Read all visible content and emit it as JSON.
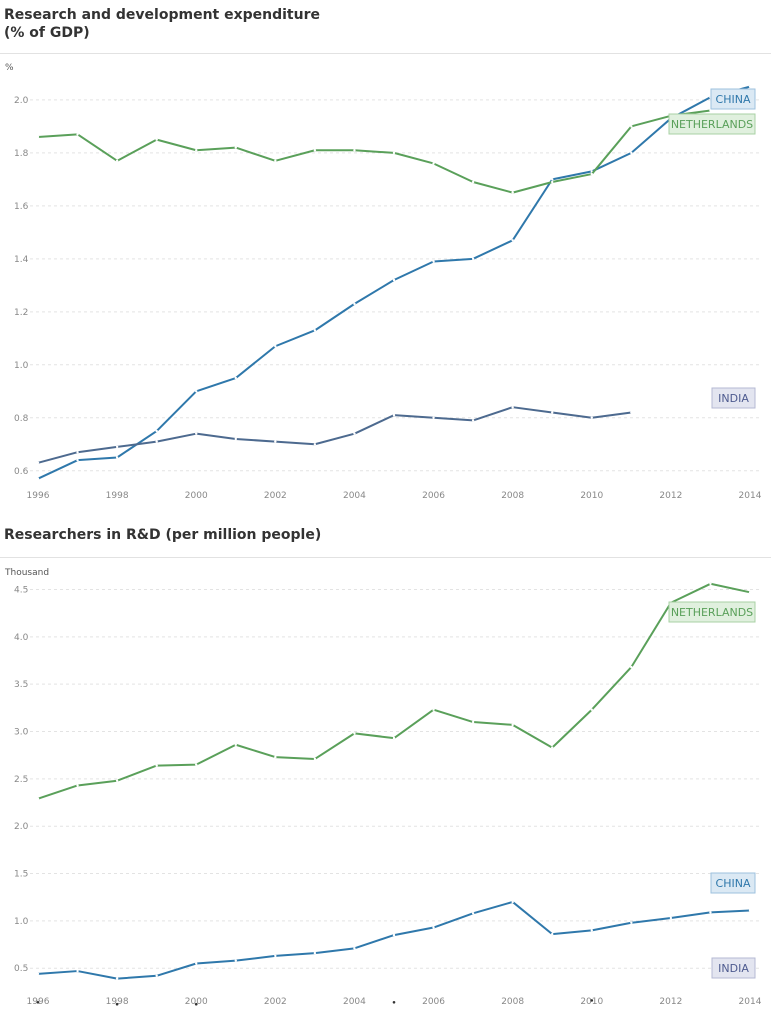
{
  "charts": [
    {
      "title": "Research and development expenditure (% of GDP)",
      "unit": "%",
      "chart_data": {
        "type": "line",
        "title": "Research and development expenditure (% of GDP)",
        "ylabel": "%",
        "xlim": [
          1996,
          2014
        ],
        "ylim": [
          0.55,
          2.06
        ],
        "x_ticks": [
          "1996",
          "1998",
          "2000",
          "2002",
          "2004",
          "2006",
          "2008",
          "2010",
          "2012",
          "2014"
        ],
        "y_ticks": [
          "0.6",
          "0.8",
          "1.0",
          "1.2",
          "1.4",
          "1.6",
          "1.8",
          "2.0"
        ],
        "grid": true,
        "series": [
          {
            "name": "CHINA",
            "color": "#2f78ab",
            "x": [
              1996,
              1997,
              1998,
              1999,
              2000,
              2001,
              2002,
              2003,
              2004,
              2005,
              2006,
              2007,
              2008,
              2009,
              2010,
              2011,
              2012,
              2013,
              2014
            ],
            "values": [
              0.57,
              0.64,
              0.65,
              0.75,
              0.9,
              0.95,
              1.07,
              1.13,
              1.23,
              1.32,
              1.39,
              1.4,
              1.47,
              1.7,
              1.73,
              1.8,
              1.93,
              2.01,
              2.05
            ]
          },
          {
            "name": "NETHERLANDS",
            "color": "#5aa05a",
            "x": [
              1996,
              1997,
              1998,
              1999,
              2000,
              2001,
              2002,
              2003,
              2004,
              2005,
              2006,
              2007,
              2008,
              2009,
              2010,
              2011,
              2012,
              2013
            ],
            "values": [
              1.86,
              1.87,
              1.77,
              1.85,
              1.81,
              1.82,
              1.77,
              1.81,
              1.81,
              1.8,
              1.76,
              1.69,
              1.65,
              1.69,
              1.72,
              1.9,
              1.94,
              1.96
            ]
          },
          {
            "name": "INDIA",
            "color": "#4d6a8f",
            "x": [
              1996,
              1997,
              1998,
              1999,
              2000,
              2001,
              2002,
              2003,
              2004,
              2005,
              2006,
              2007,
              2008,
              2009,
              2010,
              2011
            ],
            "values": [
              0.63,
              0.67,
              0.69,
              0.71,
              0.74,
              0.72,
              0.71,
              0.7,
              0.74,
              0.81,
              0.8,
              0.79,
              0.84,
              0.82,
              0.8,
              0.82
            ]
          }
        ]
      }
    },
    {
      "title": "Researchers in R&D (per million people)",
      "unit": "Thousand",
      "chart_data": {
        "type": "line",
        "title": "Researchers in R&D (per million people)",
        "ylabel": "Thousand",
        "xlim": [
          1996,
          2014
        ],
        "ylim": [
          0.27,
          4.6
        ],
        "x_ticks": [
          "1996",
          "1998",
          "2000",
          "2002",
          "2004",
          "2006",
          "2008",
          "2010",
          "2012",
          "2014"
        ],
        "y_ticks": [
          "0.5",
          "1.0",
          "1.5",
          "2.0",
          "2.5",
          "3.0",
          "3.5",
          "4.0",
          "4.5"
        ],
        "grid": true,
        "series": [
          {
            "name": "NETHERLANDS",
            "color": "#5aa05a",
            "x": [
              1996,
              1997,
              1998,
              1999,
              2000,
              2001,
              2002,
              2003,
              2004,
              2005,
              2006,
              2007,
              2008,
              2009,
              2010,
              2011,
              2012,
              2013,
              2014
            ],
            "values": [
              2.29,
              2.43,
              2.48,
              2.64,
              2.65,
              2.86,
              2.73,
              2.71,
              2.98,
              2.93,
              3.23,
              3.1,
              3.07,
              2.83,
              3.23,
              3.68,
              4.36,
              4.56,
              4.47
            ]
          },
          {
            "name": "CHINA",
            "color": "#2f78ab",
            "x": [
              1996,
              1997,
              1998,
              1999,
              2000,
              2001,
              2002,
              2003,
              2004,
              2005,
              2006,
              2007,
              2008,
              2009,
              2010,
              2011,
              2012,
              2013,
              2014
            ],
            "values": [
              0.44,
              0.47,
              0.39,
              0.42,
              0.55,
              0.58,
              0.63,
              0.66,
              0.71,
              0.85,
              0.93,
              1.08,
              1.2,
              0.86,
              0.9,
              0.98,
              1.03,
              1.09,
              1.11
            ]
          },
          {
            "name": "INDIA",
            "color": "#4d6a8f",
            "x": [
              1996,
              1998,
              2000,
              2005,
              2010
            ],
            "values": [
              0.14,
              0.12,
              0.12,
              0.14,
              0.16
            ],
            "points_only": true
          }
        ]
      }
    }
  ]
}
